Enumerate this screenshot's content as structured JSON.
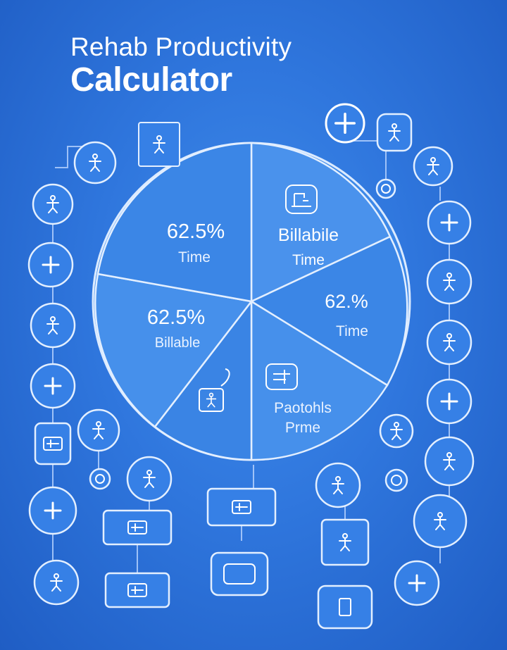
{
  "header": {
    "title_line1": "Rehab Productivity",
    "title_line2": "Calculator"
  },
  "chart_data": {
    "type": "pie",
    "slices": [
      {
        "value_label": "62.5%",
        "label": "Time"
      },
      {
        "value_label": "",
        "label": "Billabile Time"
      },
      {
        "value_label": "62.%",
        "label": "Time"
      },
      {
        "value_label": "",
        "label": "Paotohls Prme"
      },
      {
        "value_label": "",
        "label": ""
      },
      {
        "value_label": "62.5%",
        "label": "Billable"
      }
    ]
  },
  "colors": {
    "background": "#2f76dd",
    "pie_fill": "#3f8bea",
    "line": "#cfe3ff"
  },
  "icons": {
    "plus": "plus-icon",
    "figure": "person-icon",
    "device": "device-icon"
  }
}
